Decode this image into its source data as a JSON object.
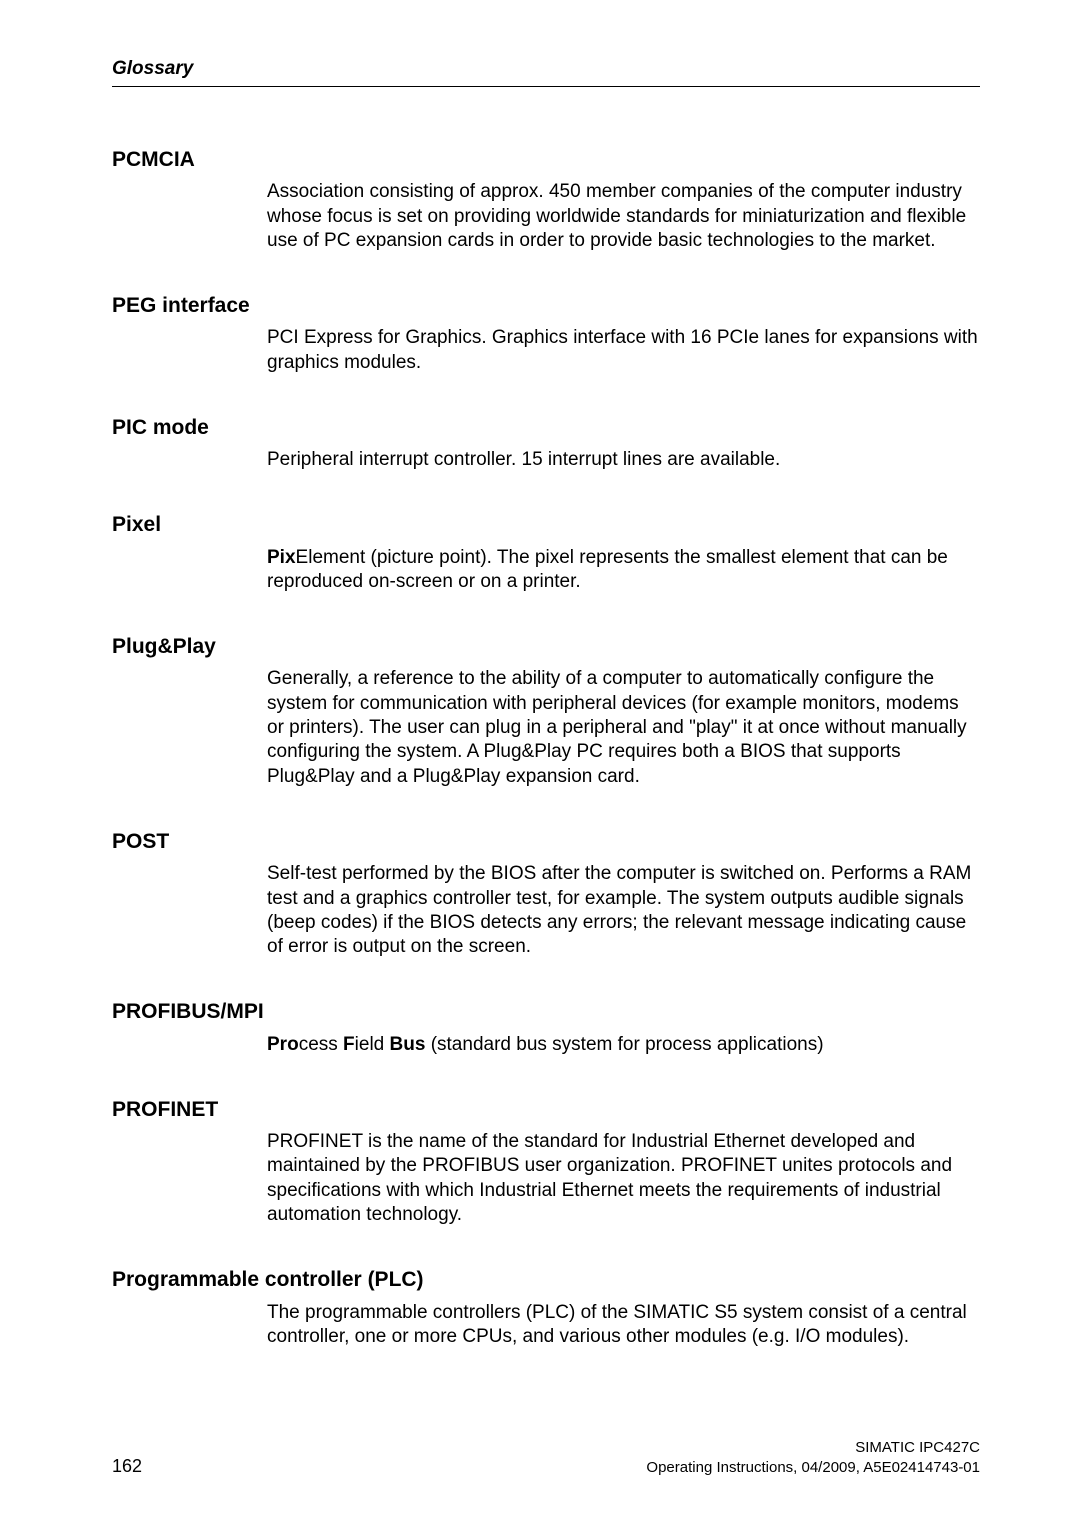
{
  "runningHead": "Glossary",
  "entries": [
    {
      "term": "PCMCIA",
      "definition": "Association consisting of approx. 450 member companies of the computer industry whose focus is set on providing worldwide standards for miniaturization and flexible use of PC expansion cards in order to provide basic technologies to the market."
    },
    {
      "term": "PEG interface",
      "definition": "PCI Express for Graphics. Graphics interface with 16 PCIe lanes for expansions with graphics modules."
    },
    {
      "term": "PIC mode",
      "definition": "Peripheral interrupt controller. 15 interrupt lines are available."
    },
    {
      "term": "Pixel",
      "definition_parts": [
        {
          "bold": true,
          "text": "Pix"
        },
        {
          "bold": false,
          "text": "El"
        },
        {
          "bold": false,
          "text": "ement (picture point). The pixel represents the smallest element that can be reproduced on-screen or on a printer."
        }
      ]
    },
    {
      "term": "Plug&Play",
      "definition": "Generally, a reference to the ability of a computer to automatically configure the system for communication with peripheral devices (for example monitors, modems or printers). The user can plug in a peripheral and \"play\" it at once without manually configuring the system. A Plug&Play PC requires both a BIOS that supports Plug&Play and a Plug&Play expansion card."
    },
    {
      "term": "POST",
      "definition": "Self-test performed by the BIOS after the computer is switched on. Performs a RAM test and a graphics controller test, for example. The system outputs audible signals (beep codes) if the BIOS detects any errors; the relevant message indicating cause of error is output on the screen."
    },
    {
      "term": "PROFIBUS/MPI",
      "definition_parts": [
        {
          "bold": true,
          "text": "Pro"
        },
        {
          "bold": false,
          "text": "cess "
        },
        {
          "bold": true,
          "text": "F"
        },
        {
          "bold": false,
          "text": "ield "
        },
        {
          "bold": true,
          "text": "Bus"
        },
        {
          "bold": false,
          "text": " (standard bus system for process applications)"
        }
      ]
    },
    {
      "term": "PROFINET",
      "definition": "PROFINET is the name of the standard for Industrial Ethernet developed and maintained by the PROFIBUS user organization. PROFINET unites protocols and specifications with which Industrial Ethernet meets the requirements of industrial automation technology."
    },
    {
      "term": "Programmable controller (PLC)",
      "definition": "The programmable controllers (PLC) of the SIMATIC S5 system consist of a central controller, one or more CPUs, and various other modules (e.g. I/O modules)."
    }
  ],
  "footer": {
    "pageNumber": "162",
    "productLine": "SIMATIC IPC427C",
    "docLine": "Operating Instructions, 04/2009, A5E02414743-01"
  }
}
